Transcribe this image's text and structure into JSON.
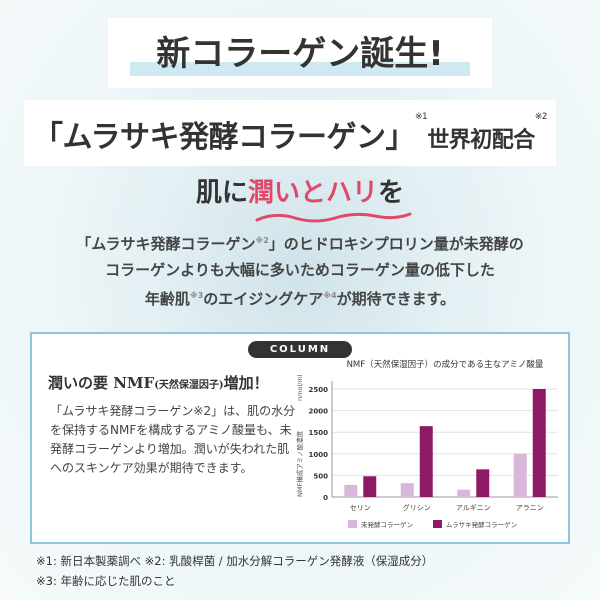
{
  "header": {
    "title": "新コラーゲン誕生!",
    "headline_main": "「ムラサキ発酵コラーゲン」",
    "headline_note1": "※1",
    "headline_suffix": "世界初配合",
    "headline_note2": "※2",
    "sub_prefix": "肌に",
    "sub_highlight": "潤いとハリ",
    "sub_suffix": "を"
  },
  "description": {
    "line1a": "「ムラサキ発酵コラーゲン",
    "line1n": "※2",
    "line1b": "」のヒドロキシプロリン量が未発酵の",
    "line2": "コラーゲンよりも大幅に多いためコラーゲン量の低下した",
    "line3a": "年齢肌",
    "line3n1": "※3",
    "line3b": "のエイジングケア",
    "line3n2": "※4",
    "line3c": "が期待できます。"
  },
  "column": {
    "label": "COLUMN",
    "title_a": "潤いの要 NMF",
    "title_small": "(天然保湿因子)",
    "title_b": "増加！",
    "body": "「ムラサキ発酵コラーゲン※2」は、肌の水分を保持するNMFを構成するアミノ酸量も、未発酵コラーゲンより増加。潤いが失われた肌へのスキンケア効果が期待できます。"
  },
  "footnotes": {
    "line1": "※1: 新日本製薬調べ ※2: 乳酸桿菌 / 加水分解コラーゲン発酵液（保湿成分）",
    "line2": "※3: 年齢に応じた肌のこと"
  },
  "colors": {
    "accent_pink": "#e2486a",
    "border_blue": "#8fc6df",
    "series_light": "#d8b8d8",
    "series_dark": "#8e1a66"
  },
  "chart_data": {
    "type": "bar",
    "title": "NMF（天然保湿因子）の成分である主なアミノ酸量",
    "ylabel": "NMF構成アミノ酸濃度",
    "yunit": "nmol/ml",
    "categories": [
      "セリン",
      "グリシン",
      "アルギニン",
      "アラニン"
    ],
    "series": [
      {
        "name": "未発酵コラーゲン",
        "values": [
          280,
          320,
          170,
          1000
        ],
        "color": "#d8b8d8"
      },
      {
        "name": "ムラサキ発酵コラーゲン",
        "values": [
          480,
          1640,
          640,
          2500
        ],
        "color": "#8e1a66"
      }
    ],
    "ylim": [
      0,
      2500
    ],
    "yticks": [
      0,
      500,
      1000,
      1500,
      2000,
      2500
    ],
    "grid": true,
    "legend": "bottom"
  }
}
